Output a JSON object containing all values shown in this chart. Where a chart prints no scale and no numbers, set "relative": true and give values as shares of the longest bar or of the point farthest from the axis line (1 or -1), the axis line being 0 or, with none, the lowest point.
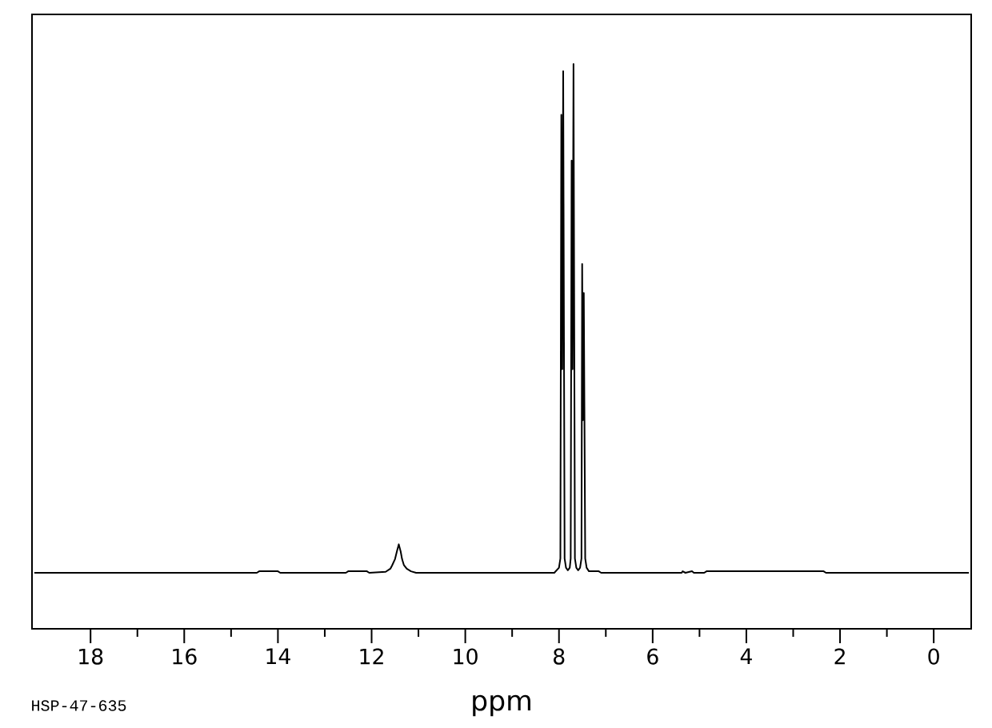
{
  "chart_data": {
    "type": "line",
    "relative": true,
    "xlabel": "ppm",
    "annotations": [
      "HSP-47-635"
    ],
    "xlim": [
      19.25,
      -0.8
    ],
    "xticks": [
      18,
      16,
      14,
      12,
      10,
      8,
      6,
      4,
      2,
      0
    ],
    "color": "#000000",
    "x": [
      19.2,
      14.45,
      14.4,
      14.0,
      13.95,
      12.55,
      12.5,
      12.1,
      12.05,
      11.7,
      11.6,
      11.56,
      11.5,
      11.46,
      11.42,
      11.38,
      11.35,
      11.31,
      11.25,
      11.16,
      11.05,
      8.1,
      8.0,
      7.97,
      7.95,
      7.93,
      7.91,
      7.88,
      7.85,
      7.81,
      7.77,
      7.75,
      7.73,
      7.71,
      7.69,
      7.66,
      7.63,
      7.59,
      7.55,
      7.52,
      7.505,
      7.49,
      7.47,
      7.44,
      7.41,
      7.36,
      7.15,
      7.1,
      5.38,
      5.36,
      5.3,
      5.16,
      5.12,
      4.9,
      4.85,
      2.35,
      2.3,
      -0.75
    ],
    "values": [
      0,
      0,
      0.003,
      0.003,
      0,
      0,
      0.003,
      0.003,
      0,
      0.002,
      0.008,
      0.015,
      0.027,
      0.042,
      0.056,
      0.042,
      0.027,
      0.015,
      0.008,
      0.003,
      0,
      0,
      0.01,
      0.028,
      0.9,
      0.4,
      0.986,
      0.028,
      0.01,
      0.005,
      0.01,
      0.028,
      0.81,
      0.4,
      1.0,
      0.028,
      0.01,
      0.005,
      0.01,
      0.028,
      0.607,
      0.3,
      0.55,
      0.028,
      0.01,
      0.003,
      0.003,
      0,
      0,
      0.003,
      0,
      0.003,
      0,
      0,
      0.003,
      0.003,
      0,
      0
    ]
  }
}
